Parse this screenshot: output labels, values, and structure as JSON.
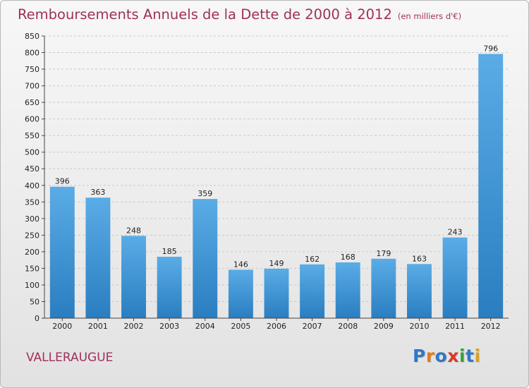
{
  "title": "Remboursements Annuels de la Dette de 2000 à 2012",
  "subtitle": "(en milliers d'€)",
  "town": "VALLERAUGUE",
  "logo": {
    "letters": [
      "P",
      "r",
      "o",
      "x",
      "i",
      "t",
      "i"
    ],
    "colors": [
      "#2f78c4",
      "#e07b1f",
      "#2f78c4",
      "#d23a2a",
      "#3aa03a",
      "#2f78c4",
      "#d9a12a"
    ]
  },
  "colors": {
    "bar_light": "#5aace6",
    "bar_dark": "#2a7ec0",
    "title": "#a0305c"
  },
  "chart_data": {
    "type": "bar",
    "categories": [
      "2000",
      "2001",
      "2002",
      "2003",
      "2004",
      "2005",
      "2006",
      "2007",
      "2008",
      "2009",
      "2010",
      "2011",
      "2012"
    ],
    "values": [
      396,
      363,
      248,
      185,
      359,
      146,
      149,
      162,
      168,
      179,
      163,
      243,
      796
    ],
    "ylim": [
      0,
      850
    ],
    "yticks": [
      0,
      50,
      100,
      150,
      200,
      250,
      300,
      350,
      400,
      450,
      500,
      550,
      600,
      650,
      700,
      750,
      800,
      850
    ],
    "grid": true,
    "legend": "none"
  }
}
